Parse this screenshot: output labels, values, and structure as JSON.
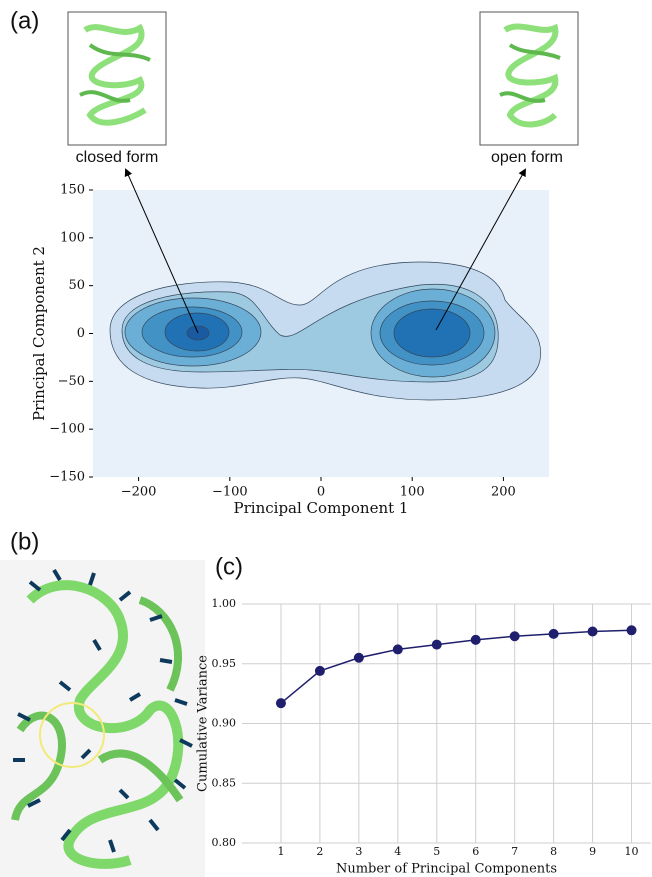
{
  "panel_labels": [
    "(a)",
    "(b)",
    "(c)"
  ],
  "chart_data": [
    {
      "type": "contour",
      "x_label": "Principal Component 1",
      "y_label": "Principal Component 2",
      "xlim": [
        -250,
        250
      ],
      "ylim": [
        -150,
        150
      ],
      "xticks": [
        {
          "value": -200,
          "label": "−200"
        },
        {
          "value": -100,
          "label": "−100"
        },
        0,
        100,
        200
      ],
      "yticks": [
        {
          "value": -150,
          "label": "−150"
        },
        {
          "value": -100,
          "label": "−100"
        },
        {
          "value": -50,
          "label": "−50"
        },
        0,
        50,
        100,
        150
      ],
      "annotations": [
        "closed form",
        "open form"
      ]
    },
    {
      "type": "line",
      "x_label": "Number of Principal Components",
      "y_label": "Cumulative Variance",
      "x": [
        1,
        2,
        3,
        4,
        5,
        6,
        7,
        8,
        9,
        10
      ],
      "values": [
        0.917,
        0.944,
        0.955,
        0.962,
        0.966,
        0.97,
        0.973,
        0.975,
        0.977,
        0.978
      ],
      "color": "#1f1f6e",
      "xlim": [
        0,
        10.5
      ],
      "ylim": [
        0.8,
        1.0
      ],
      "xticks": [
        1,
        2,
        3,
        4,
        5,
        6,
        7,
        8,
        9,
        10
      ],
      "yticks": [
        {
          "value": 0.8,
          "label": "0.80"
        },
        0.85,
        {
          "value": 0.9,
          "label": "0.90"
        },
        0.95,
        {
          "value": 1.0,
          "label": "1.00"
        }
      ],
      "grid": true
    }
  ]
}
